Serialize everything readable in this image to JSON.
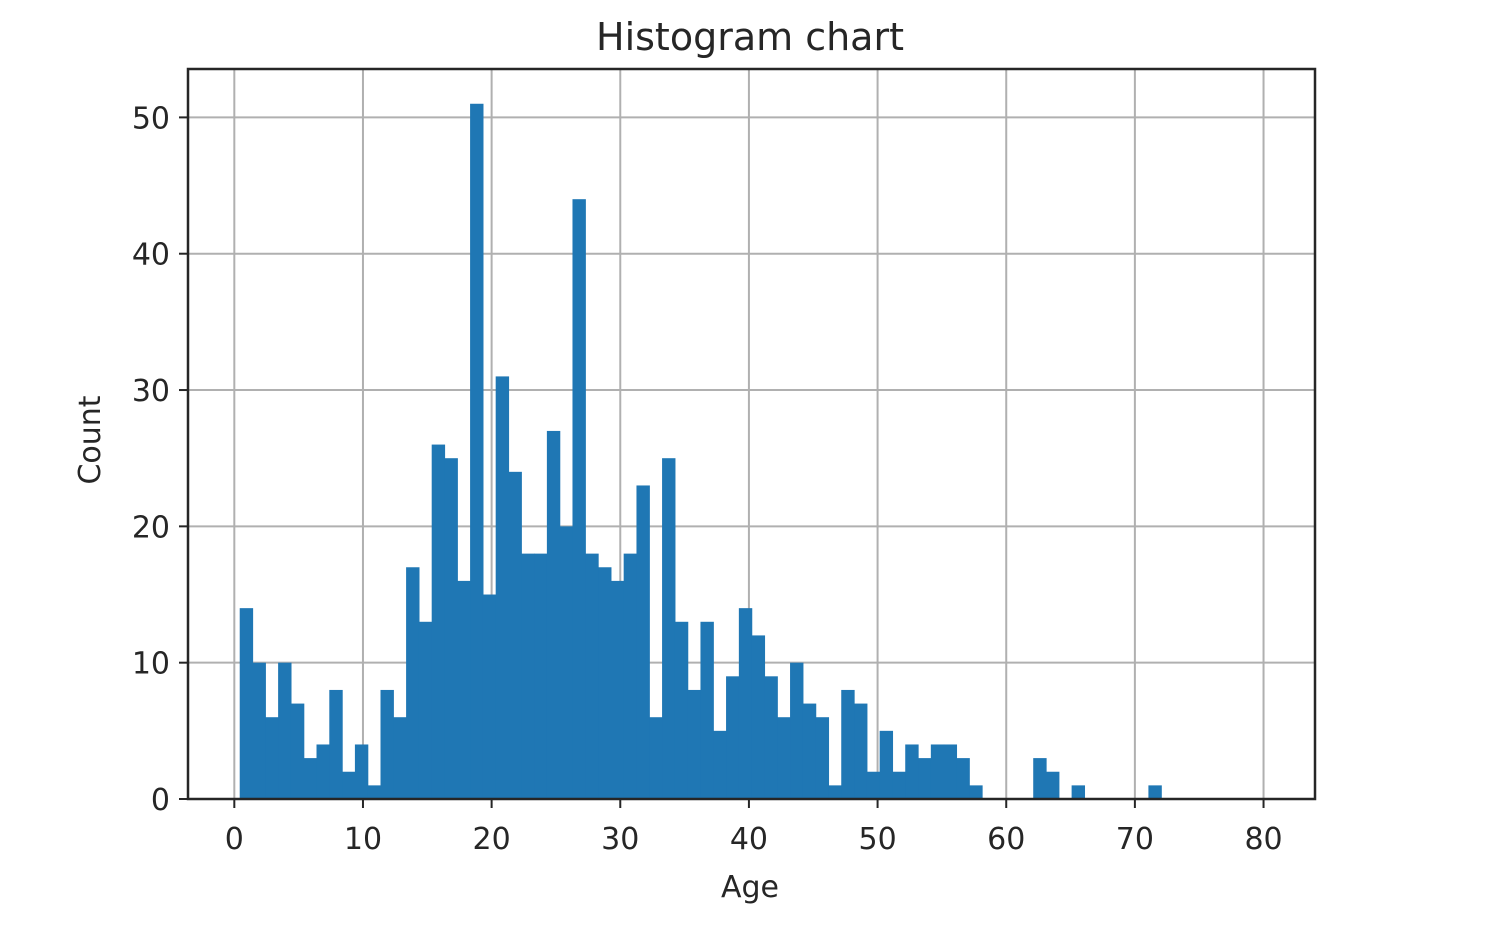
{
  "chart_data": {
    "type": "bar",
    "title": "Histogram chart",
    "xlabel": "Age",
    "ylabel": "Count",
    "xlim": [
      -3.6,
      84.0
    ],
    "ylim": [
      0,
      53.55
    ],
    "xticks": [
      0,
      10,
      20,
      30,
      40,
      50,
      60,
      70,
      80
    ],
    "yticks": [
      0,
      10,
      20,
      30,
      40,
      50
    ],
    "grid": true,
    "bar_color": "#1f77b4",
    "bin_start": 0.42,
    "bin_width": 0.9948,
    "values": [
      14,
      10,
      6,
      10,
      7,
      3,
      4,
      8,
      2,
      4,
      1,
      8,
      6,
      17,
      13,
      26,
      25,
      16,
      51,
      15,
      31,
      24,
      18,
      18,
      27,
      20,
      44,
      18,
      17,
      16,
      18,
      23,
      6,
      25,
      13,
      8,
      13,
      5,
      9,
      14,
      12,
      9,
      6,
      10,
      7,
      6,
      1,
      8,
      7,
      2,
      5,
      2,
      4,
      3,
      4,
      4,
      3,
      1,
      0,
      0,
      0,
      0,
      3,
      2,
      0,
      1,
      0,
      0,
      0,
      0,
      0,
      1
    ]
  }
}
